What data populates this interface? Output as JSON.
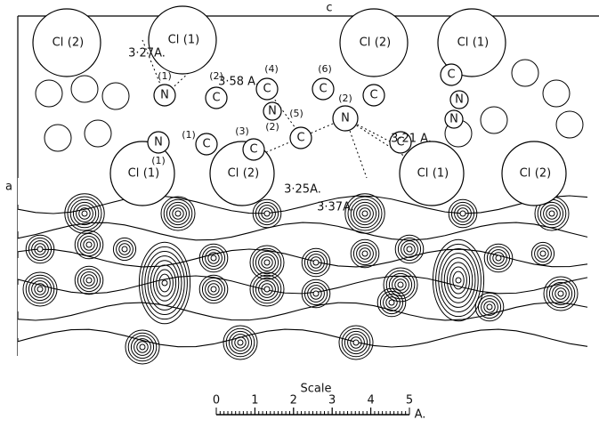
{
  "axes": {
    "c": "c",
    "a": "a"
  },
  "atoms": [
    {
      "symbol": "Cl",
      "index": "(2)"
    },
    {
      "symbol": "Cl",
      "index": "(1)"
    },
    {
      "symbol": "Cl",
      "index": "(2)"
    },
    {
      "symbol": "Cl",
      "index": "(1)"
    },
    {
      "symbol": "Cl",
      "index": "(1)"
    },
    {
      "symbol": "Cl",
      "index": "(2)"
    },
    {
      "symbol": "Cl",
      "index": "(1)"
    },
    {
      "symbol": "Cl",
      "index": "(2)"
    },
    {
      "symbol": "N",
      "index": "(1)"
    },
    {
      "symbol": "N",
      "index": "(1)"
    },
    {
      "symbol": "C",
      "index": "(1)"
    },
    {
      "symbol": "C",
      "index": "(2)"
    },
    {
      "symbol": "C",
      "index": "(3)"
    },
    {
      "symbol": "C",
      "index": "(4)"
    },
    {
      "symbol": "N",
      "index": "(2)"
    },
    {
      "symbol": "C",
      "index": "(5)"
    },
    {
      "symbol": "C",
      "index": "(6)"
    },
    {
      "symbol": "N",
      "index": "(2)"
    },
    {
      "symbol": "C"
    },
    {
      "symbol": "C"
    },
    {
      "symbol": "C"
    },
    {
      "symbol": "N"
    },
    {
      "symbol": "N"
    }
  ],
  "distances": [
    "3·27A.",
    "3·58 A.",
    "3·25A.",
    "3·37A.",
    "3·21 A."
  ],
  "scale": {
    "title": "Scale",
    "ticks": [
      0,
      1,
      2,
      3,
      4,
      5
    ],
    "unit": "A."
  }
}
